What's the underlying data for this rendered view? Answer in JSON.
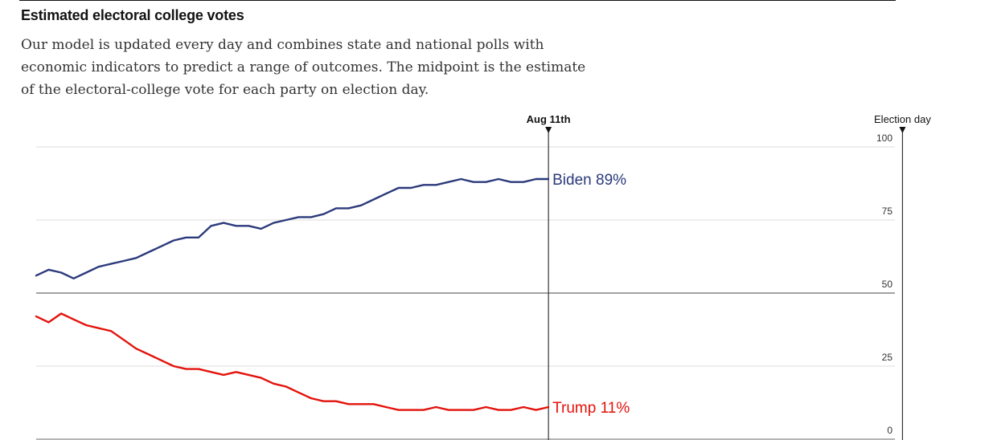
{
  "header": {
    "title": "Estimated electoral college votes",
    "subtitle": "Our model is updated every day and combines state and national polls with economic indicators to predict a range of outcomes. The midpoint is the estimate of the electoral-college vote for each party on election day."
  },
  "chart_data": {
    "type": "line",
    "title": "Estimated electoral college votes",
    "ylim": [
      0,
      100
    ],
    "y_ticks": [
      {
        "value": 0,
        "label": "0"
      },
      {
        "value": 25,
        "label": "25"
      },
      {
        "value": 50,
        "label": "50"
      },
      {
        "value": 75,
        "label": "75"
      },
      {
        "value": 100,
        "label": "100"
      }
    ],
    "x_unit": "days since start of series",
    "xlim": [
      0,
      215
    ],
    "markers": [
      {
        "name": "current-date",
        "x": 123,
        "label": "Aug 11th",
        "bold": true
      },
      {
        "name": "election-day",
        "x": 208,
        "label": "Election day",
        "bold": false
      }
    ],
    "series": [
      {
        "name": "Biden",
        "color": "#2b3a7b",
        "end_label": "Biden 89%",
        "x": [
          0,
          3,
          6,
          9,
          12,
          15,
          18,
          21,
          24,
          27,
          30,
          33,
          36,
          39,
          42,
          45,
          48,
          51,
          54,
          57,
          60,
          63,
          66,
          69,
          72,
          75,
          78,
          81,
          84,
          87,
          90,
          93,
          96,
          99,
          102,
          105,
          108,
          111,
          114,
          117,
          120,
          123
        ],
        "values": [
          56,
          58,
          57,
          55,
          57,
          59,
          60,
          61,
          62,
          64,
          66,
          68,
          69,
          69,
          73,
          74,
          73,
          73,
          72,
          74,
          75,
          76,
          76,
          77,
          79,
          79,
          80,
          82,
          84,
          86,
          86,
          87,
          87,
          88,
          89,
          88,
          88,
          89,
          88,
          88,
          89,
          89
        ]
      },
      {
        "name": "Trump",
        "color": "#e3120b",
        "end_label": "Trump 11%",
        "x": [
          0,
          3,
          6,
          9,
          12,
          15,
          18,
          21,
          24,
          27,
          30,
          33,
          36,
          39,
          42,
          45,
          48,
          51,
          54,
          57,
          60,
          63,
          66,
          69,
          72,
          75,
          78,
          81,
          84,
          87,
          90,
          93,
          96,
          99,
          102,
          105,
          108,
          111,
          114,
          117,
          120,
          123
        ],
        "values": [
          42,
          40,
          43,
          41,
          39,
          38,
          37,
          34,
          31,
          29,
          27,
          25,
          24,
          24,
          23,
          22,
          23,
          22,
          21,
          19,
          18,
          16,
          14,
          13,
          13,
          12,
          12,
          12,
          11,
          10,
          10,
          10,
          11,
          10,
          10,
          10,
          11,
          10,
          10,
          11,
          10,
          11
        ]
      }
    ]
  }
}
